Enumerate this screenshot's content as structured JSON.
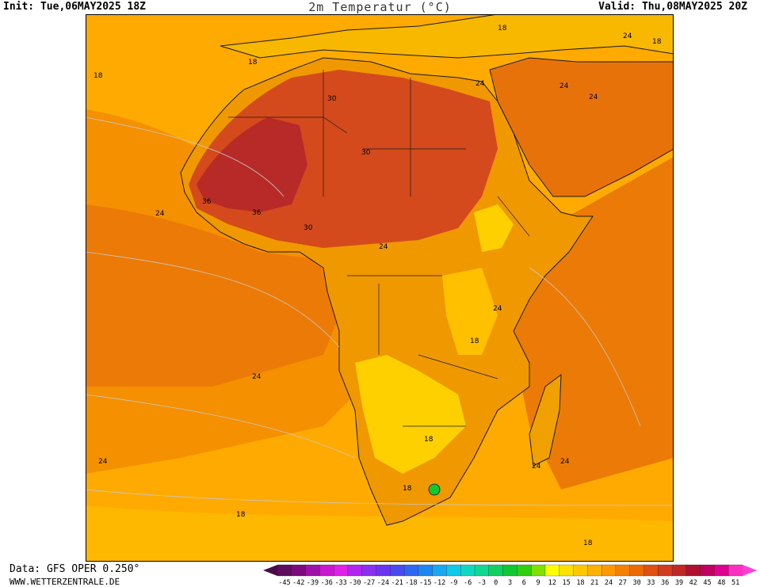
{
  "header": {
    "init": "Init: Tue,06MAY2025 18Z",
    "title": "2m Temperatur (°C)",
    "valid": "Valid: Thu,08MAY2025 20Z"
  },
  "footer": {
    "data_source": "Data: GFS OPER 0.250°",
    "website": "WWW.WETTERZENTRALE.DE"
  },
  "contour_labels": [
    "18",
    "18",
    "18",
    "24",
    "24",
    "24",
    "24",
    "24",
    "24",
    "24",
    "24",
    "24",
    "24",
    "24",
    "30",
    "30",
    "30",
    "36",
    "36",
    "18",
    "18",
    "18",
    "18",
    "18",
    "18"
  ],
  "legend": {
    "ticks": [
      "-45",
      "-42",
      "-39",
      "-36",
      "-33",
      "-30",
      "-27",
      "-24",
      "-21",
      "-18",
      "-15",
      "-12",
      "-9",
      "-6",
      "-3",
      "0",
      "3",
      "6",
      "9",
      "12",
      "15",
      "18",
      "21",
      "24",
      "27",
      "30",
      "33",
      "36",
      "39",
      "42",
      "45",
      "48",
      "51"
    ],
    "colors": [
      "#5e0b5e",
      "#7d0a7d",
      "#a010a8",
      "#c818d0",
      "#e020e8",
      "#b025f0",
      "#8a2ff0",
      "#6a35f0",
      "#4a4af0",
      "#2f67f0",
      "#1e86f0",
      "#18a8f0",
      "#10c8e8",
      "#10d8c0",
      "#10d890",
      "#10d060",
      "#10c830",
      "#30d010",
      "#80e000",
      "#ffff00",
      "#ffe000",
      "#ffc800",
      "#ffb000",
      "#ff9800",
      "#f58000",
      "#ec6a00",
      "#e05010",
      "#d03c20",
      "#c02828",
      "#b01030",
      "#c00060",
      "#e00090",
      "#ff30c0"
    ],
    "arrow_left_color": "#4a0a4a",
    "arrow_right_color": "#ff40d0"
  },
  "palette": {
    "ocean_cool": "#ffaa00",
    "ocean_mid": "#f59000",
    "ocean_warm": "#e8720a",
    "land_hot": "#d44a1c",
    "land_hottest": "#b82a28",
    "land_mild": "#f0a000",
    "land_cool": "#ffd000",
    "green_spot": "#10c830",
    "coast_line": "#1a1a1a",
    "contour_line": "#c8c8c8"
  }
}
